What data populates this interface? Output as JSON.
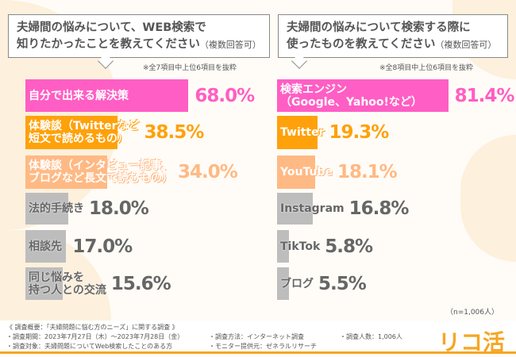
{
  "chart_data": [
    {
      "type": "bar",
      "orientation": "horizontal",
      "title": "夫婦間の悩みについて、WEB検索で知りたかったことを教えてください",
      "title_note": "（複数回答可）",
      "note": "※全7項目中上位6項目を抜粋",
      "categories": [
        "自分で出来る解決策",
        "体験談（Twitterなど短文で読めるもの）",
        "体験談（インタビュー記事、ブログなど長文で読むもの）",
        "法的手続き",
        "相談先",
        "同じ悩みを持つ人との交流"
      ],
      "labels": [
        "自分で出来る解決策",
        "体験談（Twitterなど\n短文で読めるもの）",
        "体験談（インタビュー記事、\nブログなど長文で読むもの）",
        "法的手続き",
        "相談先",
        "同じ悩みを\n持つ人との交流"
      ],
      "values": [
        68.0,
        38.5,
        34.0,
        18.0,
        17.0,
        15.6
      ],
      "value_labels": [
        "68.0%",
        "38.5%",
        "34.0%",
        "18.0%",
        "17.0%",
        "15.6%"
      ],
      "colors": [
        "#ff5ec4",
        "#ffa10a",
        "#ffb984",
        "#bdbdbd",
        "#bdbdbd",
        "#bdbdbd"
      ],
      "value_colors": [
        "#ff5ec4",
        "#ffa10a",
        "#ffb984",
        "#666666",
        "#666666",
        "#666666"
      ]
    },
    {
      "type": "bar",
      "orientation": "horizontal",
      "title": "夫婦間の悩みについて検索する際に使ったものを教えてください",
      "title_note": "（複数回答可）",
      "note": "※全8項目中上位6項目を抜粋",
      "categories": [
        "検索エンジン（Google、Yahoo!など）",
        "Twitter",
        "YouTube",
        "Instagram",
        "TikTok",
        "ブログ"
      ],
      "labels": [
        "検索エンジン\n（Google、Yahoo!など）",
        "Twitter",
        "YouTube",
        "Instagram",
        "TikTok",
        "ブログ"
      ],
      "values": [
        81.4,
        19.3,
        18.1,
        16.8,
        5.8,
        5.5
      ],
      "value_labels": [
        "81.4%",
        "19.3%",
        "18.1%",
        "16.8%",
        "5.8%",
        "5.5%"
      ],
      "colors": [
        "#ff5ec4",
        "#ffa10a",
        "#ffb984",
        "#bdbdbd",
        "#bdbdbd",
        "#bdbdbd"
      ],
      "value_colors": [
        "#ff5ec4",
        "#ffa10a",
        "#ffb984",
        "#666666",
        "#666666",
        "#666666"
      ]
    }
  ],
  "q1": {
    "line1": "夫婦間の悩みについて、WEB検索で",
    "line2": "知りたかったことを教えてください",
    "sub": "（複数回答可）"
  },
  "q2": {
    "line1": "夫婦間の悩みについて検索する際に",
    "line2": "使ったものを教えてください",
    "sub": "（複数回答可）"
  },
  "n": "（n=1,006人）",
  "footer": {
    "title": "《 調査概要：「夫婦問題に悩む方のニーズ」に関する調査 》",
    "period": "・調査期間：2023年7月27日（木）～2023年7月28日（金）",
    "target": "・調査対象：夫婦問題についてWeb検索したことのある方",
    "method": "・調査方法：インターネット調査",
    "provider": "・モニター提供元：ゼネラルリサーチ",
    "count": "・調査人数：1,006人"
  },
  "logo": "リコ活"
}
